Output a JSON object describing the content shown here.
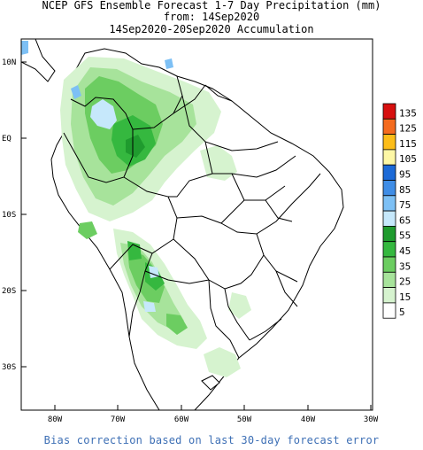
{
  "header": {
    "line1": "NCEP GFS Ensemble Forecast 1-7 Day Precipitation (mm)",
    "line2": "from: 14Sep2020",
    "line3": "14Sep2020-20Sep2020 Accumulation"
  },
  "axes": {
    "lat_labels": [
      "10N",
      "EQ",
      "10S",
      "20S",
      "30S"
    ],
    "lon_labels": [
      "80W",
      "70W",
      "60W",
      "50W",
      "40W",
      "30W"
    ]
  },
  "legend": {
    "entries": [
      {
        "label": "135",
        "color": "#d7100f"
      },
      {
        "label": "125",
        "color": "#f46b1e"
      },
      {
        "label": "115",
        "color": "#fcbd19"
      },
      {
        "label": "105",
        "color": "#fdf7a5"
      },
      {
        "label": "95",
        "color": "#1c6ad7"
      },
      {
        "label": "85",
        "color": "#3f8de6"
      },
      {
        "label": "75",
        "color": "#7dc0f5"
      },
      {
        "label": "65",
        "color": "#c6e8fb"
      },
      {
        "label": "55",
        "color": "#1f9b2e"
      },
      {
        "label": "45",
        "color": "#35b83f"
      },
      {
        "label": "35",
        "color": "#6ccd61"
      },
      {
        "label": "25",
        "color": "#a7e39b"
      },
      {
        "label": "15",
        "color": "#d6f3cf"
      },
      {
        "label": "5",
        "color": "#ffffff"
      }
    ]
  },
  "footer": {
    "text": "Bias correction based on last 30-day forecast error"
  }
}
